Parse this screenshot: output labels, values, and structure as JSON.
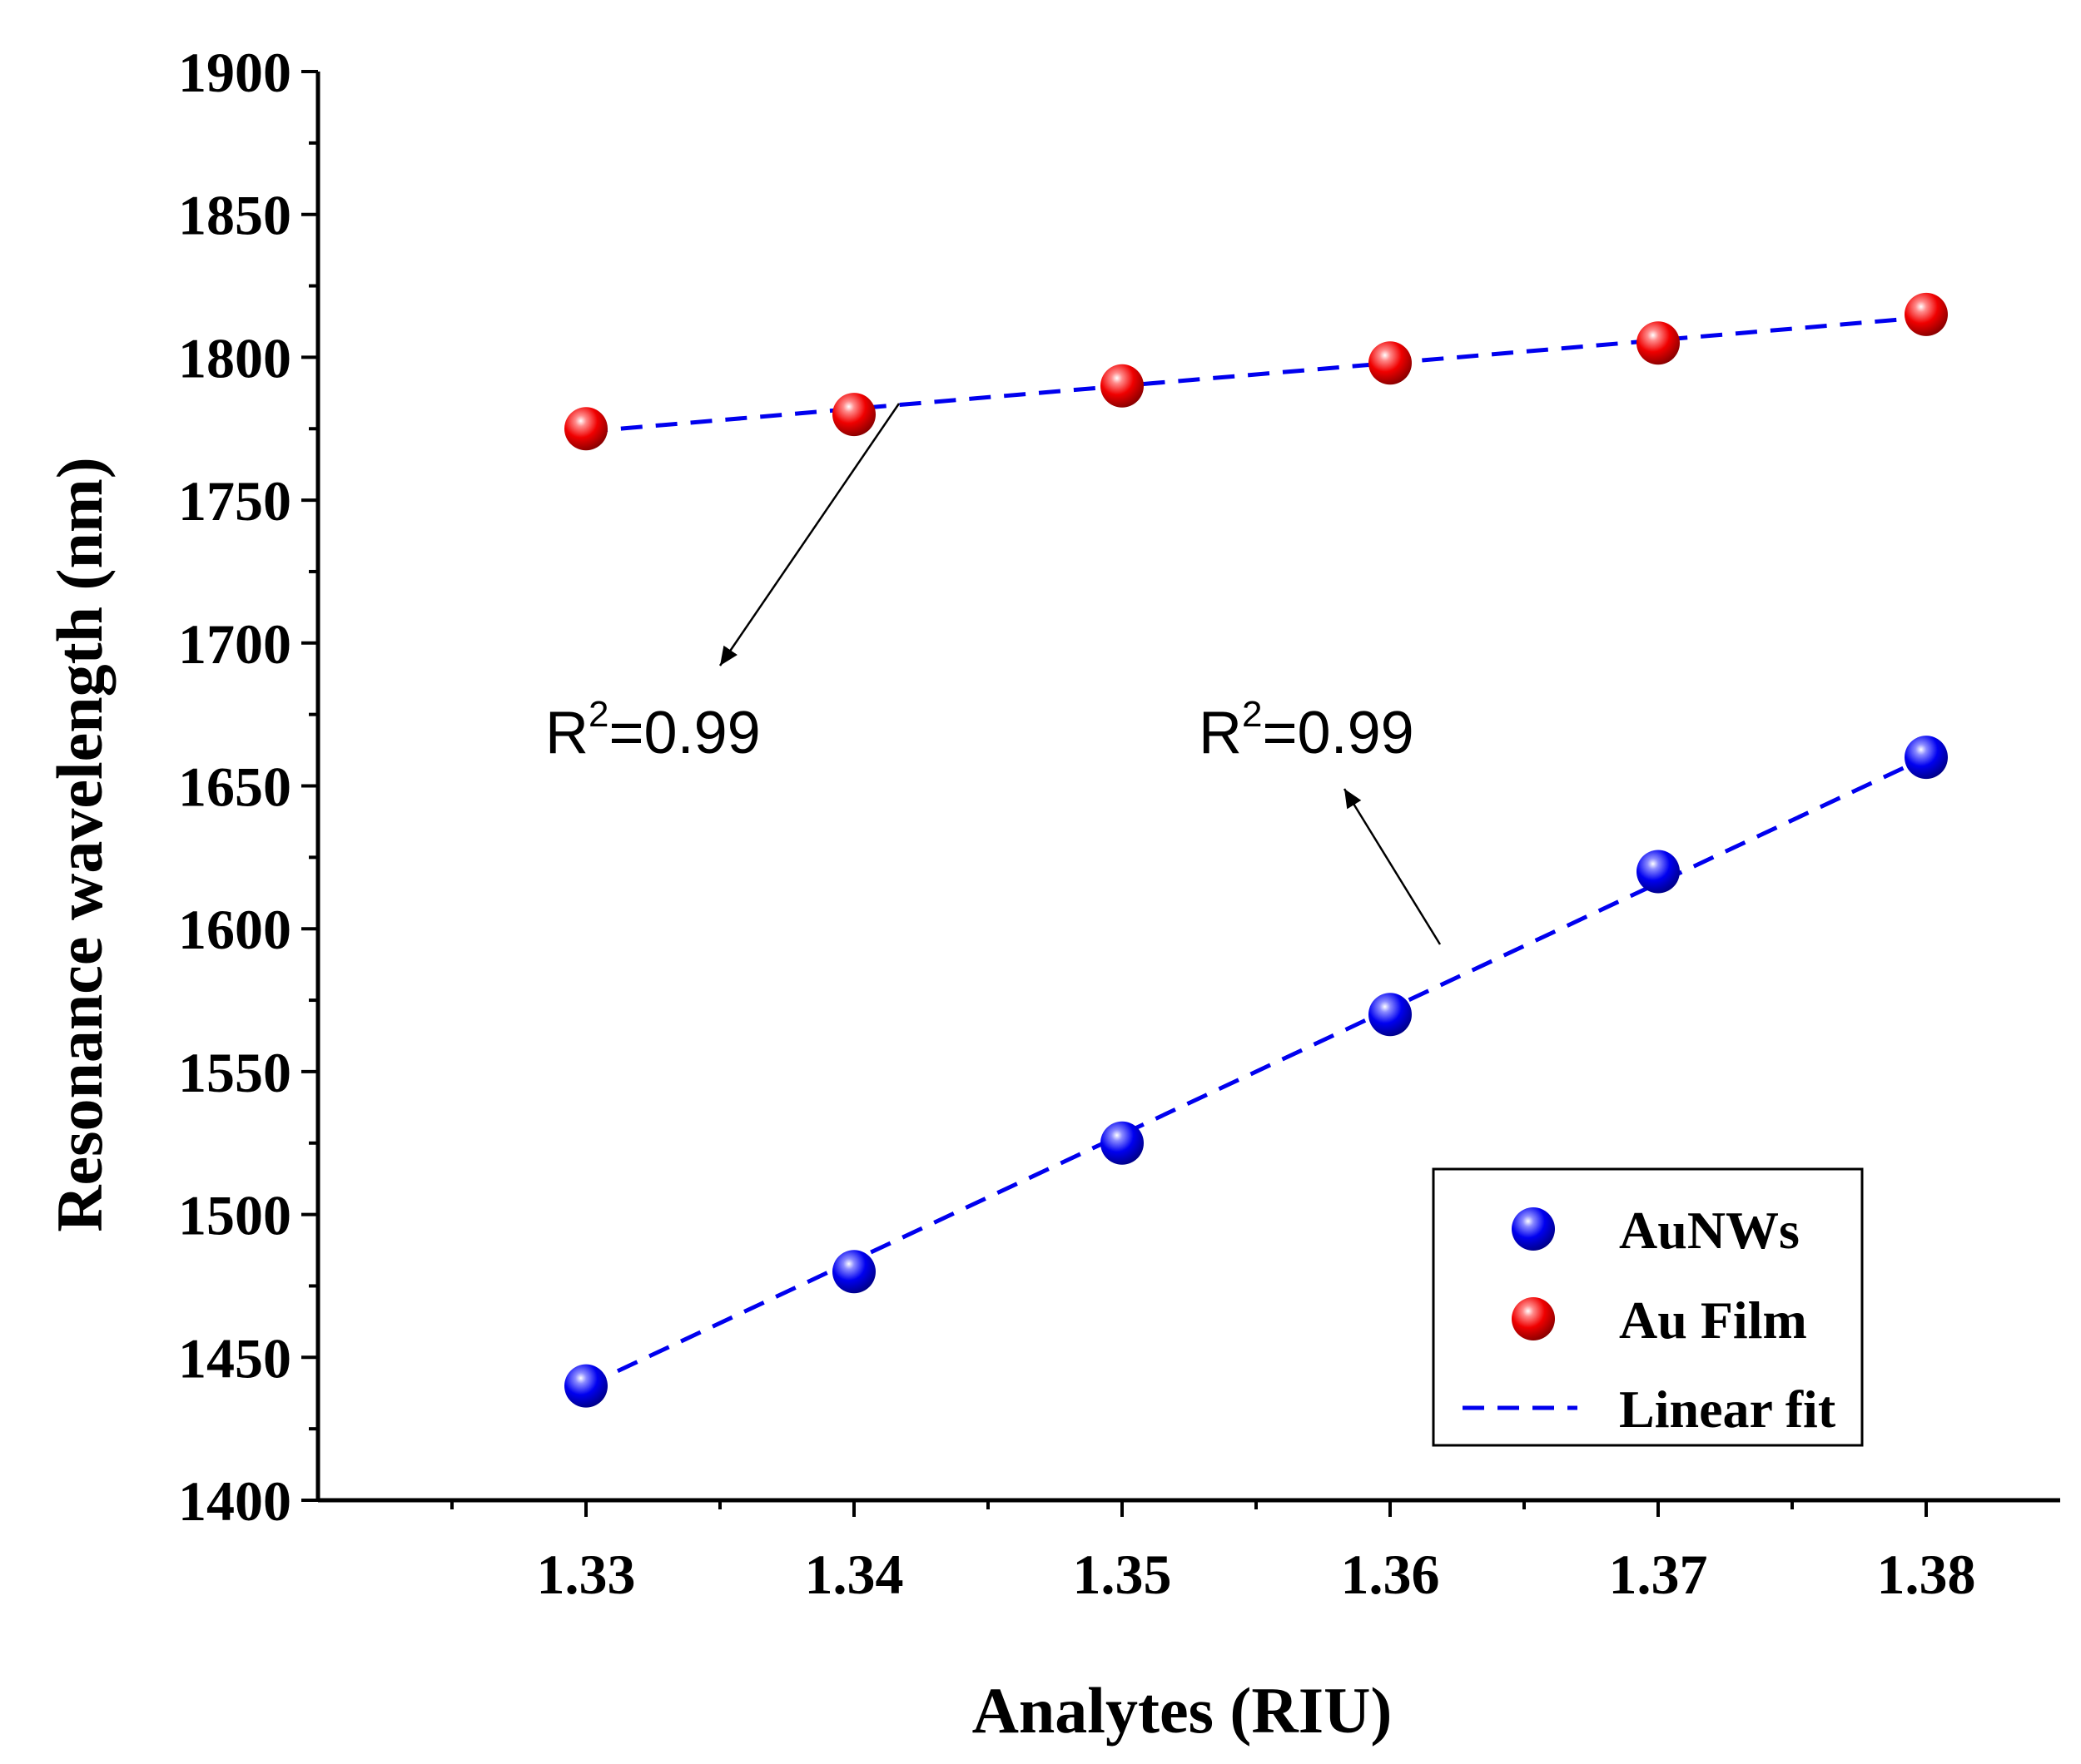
{
  "chart_data": {
    "type": "scatter",
    "title": "",
    "xlabel": "Analytes (RIU)",
    "ylabel": "Resonance wavelength (nm)",
    "xlim": [
      1.32,
      1.385
    ],
    "ylim": [
      1400,
      1900
    ],
    "x_ticks": [
      "1.33",
      "1.34",
      "1.35",
      "1.36",
      "1.37",
      "1.38"
    ],
    "y_ticks": [
      "1400",
      "1450",
      "1500",
      "1550",
      "1600",
      "1650",
      "1700",
      "1750",
      "1800",
      "1850",
      "1900"
    ],
    "x": [
      1.33,
      1.34,
      1.35,
      1.36,
      1.37,
      1.38
    ],
    "series": [
      {
        "name": "AuNWs",
        "color": "#0000ee",
        "values": [
          1440,
          1480,
          1525,
          1570,
          1620,
          1660
        ],
        "fit": [
          1440,
          1484,
          1528,
          1572,
          1616,
          1660
        ]
      },
      {
        "name": "Au Film",
        "color": "#ee0000",
        "values": [
          1775,
          1780,
          1790,
          1798,
          1805,
          1815
        ],
        "fit": [
          1774,
          1782,
          1790,
          1798,
          1806,
          1814
        ]
      }
    ],
    "fit_label": "Linear fit",
    "fit_color": "#0000ee",
    "legend_position": "bottom-right",
    "annotations": [
      {
        "base": "R",
        "sup": "2",
        "rest": "=0.99",
        "series": "Au Film"
      },
      {
        "base": "R",
        "sup": "2",
        "rest": "=0.99",
        "series": "AuNWs"
      }
    ]
  }
}
